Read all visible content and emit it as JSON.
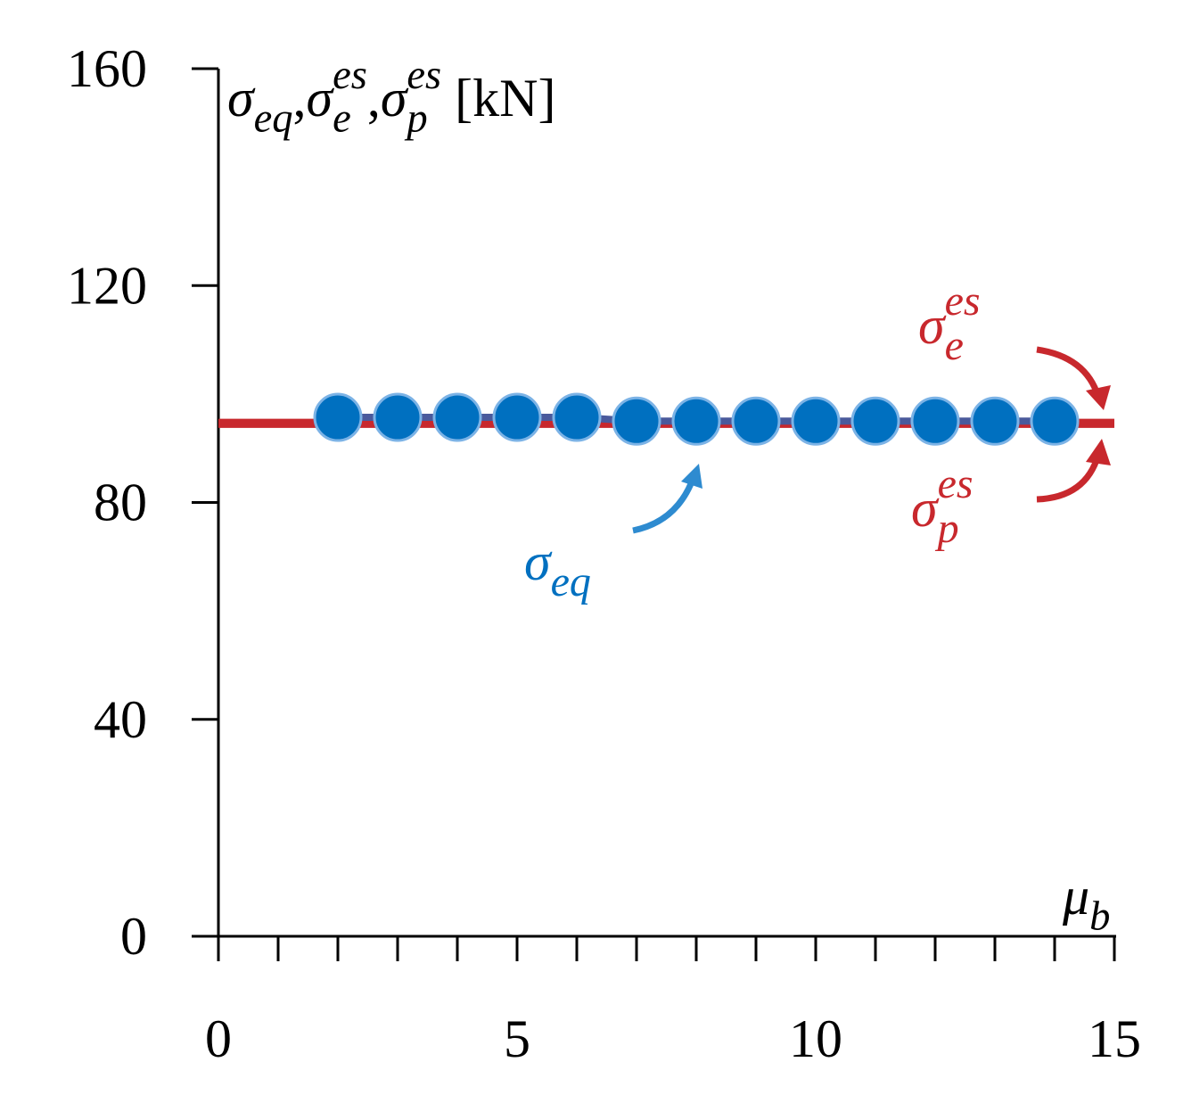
{
  "chart_data": {
    "type": "line",
    "ylabel": [
      {
        "base": "σ",
        "sub": "eq",
        "after": ","
      },
      {
        "base": "σ",
        "sub": "e",
        "sup": "es",
        "after": ","
      },
      {
        "base": "σ",
        "sub": "p",
        "sup": "es",
        "after": " [kN]"
      }
    ],
    "xlabel": {
      "base": "μ",
      "sub": "b"
    },
    "xlim": [
      0,
      15
    ],
    "xticks": [
      0,
      5,
      10,
      15
    ],
    "xminorticks": [
      0,
      1,
      2,
      3,
      4,
      5,
      6,
      7,
      8,
      9,
      10,
      11,
      12,
      13,
      14,
      15
    ],
    "ylim": [
      0,
      160
    ],
    "yticks": [
      0,
      40,
      80,
      120,
      160
    ],
    "series": [
      {
        "name": "σ",
        "name_sub": "e",
        "name_sup": "es",
        "color": "#c8282d",
        "x": [
          0,
          15
        ],
        "values": [
          94.6,
          94.6
        ]
      },
      {
        "name": "σ",
        "name_sub": "p",
        "name_sup": "es",
        "color": "#c8282d",
        "x": [
          0,
          15
        ],
        "values": [
          94.6,
          94.6
        ]
      },
      {
        "name": "σ",
        "name_sub": "eq",
        "color": "#0070c0",
        "x": [
          2,
          3,
          4,
          5,
          6,
          7,
          8,
          9,
          10,
          11,
          12,
          13,
          14
        ],
        "values": [
          95.7,
          95.7,
          95.7,
          95.7,
          95.7,
          95.0,
          95.0,
          95.0,
          95.0,
          95.0,
          95.0,
          95.0,
          95.0
        ]
      }
    ]
  }
}
